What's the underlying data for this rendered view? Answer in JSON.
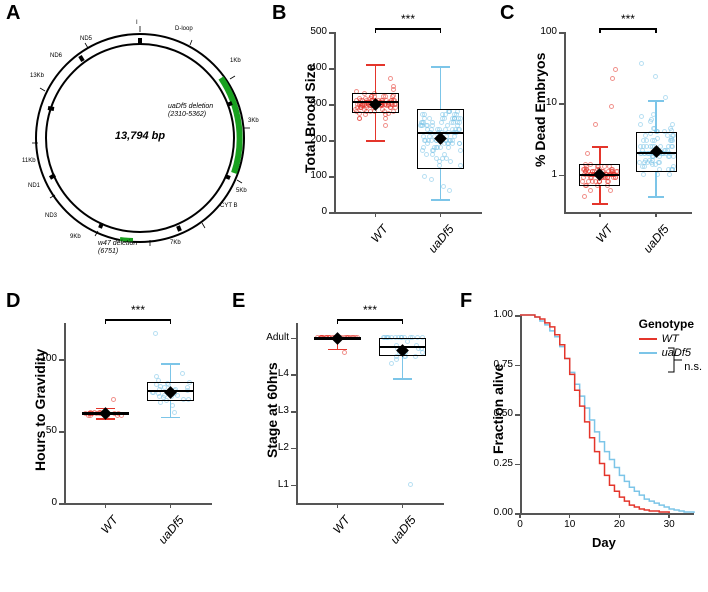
{
  "colors": {
    "wt": "#e4352b",
    "uaDf5": "#7cc5e8",
    "accent_green": "#19a11f",
    "axis": "#555555",
    "black": "#000000",
    "bg": "#ffffff"
  },
  "panelA": {
    "label": "A",
    "center": "13,794 bp",
    "anno1": "uaDf5 deletion\n(2310-5362)",
    "anno2": "w47 deletion\n(6751)",
    "outer_ticks": [
      "I",
      "II",
      "1Kb",
      "III",
      "2Kb",
      "IV",
      "3Kb",
      "D-loop",
      "4Kb",
      "5Kb",
      "6Kb",
      "7Kb",
      "8Kb",
      "9Kb",
      "10Kb",
      "11Kb",
      "12Kb",
      "13Kb",
      "ND5",
      "ND6",
      "ND4",
      "ND1",
      "ND2",
      "ND3",
      "CYT B",
      "ATP6",
      "COX I",
      "COX II",
      "COX III"
    ]
  },
  "panelB": {
    "label": "B",
    "ylabel": "Total Brood Size",
    "xlabels": [
      "WT",
      "uaDf5"
    ],
    "yticks": [
      0,
      100,
      200,
      300,
      400,
      500
    ],
    "ylim": [
      0,
      500
    ],
    "sig": "***",
    "wt": {
      "q1": 275,
      "median": 305,
      "q3": 330,
      "whisker_lo": 200,
      "whisker_hi": 410,
      "mean": 300,
      "jitter": [
        270,
        300,
        310,
        305,
        290,
        280,
        320,
        330,
        275,
        295,
        260,
        340,
        310,
        300,
        285,
        315,
        305,
        295,
        310,
        325,
        280,
        290,
        300,
        310,
        320,
        305,
        295,
        270,
        350,
        260,
        300,
        310,
        290,
        280,
        330,
        305,
        295,
        300,
        310,
        285,
        320,
        240,
        370,
        300,
        310,
        290,
        305,
        315,
        295,
        285,
        275,
        300,
        310,
        320,
        290,
        300,
        305,
        295,
        300,
        310,
        280,
        300,
        295,
        305,
        310,
        300,
        290,
        320,
        300,
        310,
        260,
        335,
        305,
        295,
        280,
        300,
        310,
        290,
        305,
        300,
        310,
        320,
        300,
        295,
        310,
        305,
        290,
        300,
        280,
        315,
        300,
        295,
        305,
        310,
        290,
        300,
        310,
        300,
        305,
        295
      ]
    },
    "ua": {
      "q1": 120,
      "median": 220,
      "q3": 285,
      "whisker_lo": 35,
      "whisker_hi": 405,
      "mean": 205,
      "jitter": [
        230,
        180,
        250,
        200,
        150,
        260,
        220,
        270,
        190,
        160,
        240,
        280,
        130,
        210,
        170,
        90,
        250,
        230,
        200,
        260,
        180,
        150,
        270,
        220,
        100,
        240,
        200,
        260,
        190,
        140,
        230,
        280,
        170,
        250,
        220,
        60,
        200,
        260,
        180,
        240,
        210,
        70,
        230,
        190,
        270,
        200,
        250,
        160,
        220,
        280,
        180,
        240,
        200,
        260,
        150,
        230,
        210,
        270,
        190,
        250,
        130,
        220,
        260,
        200,
        240,
        180,
        230,
        270,
        200,
        160,
        250,
        220,
        280,
        190,
        240,
        170,
        230,
        260,
        200,
        250,
        140,
        220,
        270,
        190,
        240,
        210,
        260,
        180,
        250,
        200,
        230,
        260,
        170,
        240,
        200,
        260,
        210,
        230,
        190,
        250
      ]
    }
  },
  "panelC": {
    "label": "C",
    "ylabel": "% Dead Embryos",
    "xlabels": [
      "WT",
      "uaDf5"
    ],
    "ytick_labels": [
      "1",
      "10",
      "100"
    ],
    "ytick_values": [
      1,
      10,
      100
    ],
    "ylim": [
      0.3,
      100
    ],
    "sig": "***",
    "wt": {
      "q1": 0.7,
      "median": 1.0,
      "q3": 1.4,
      "whisker_lo": 0.4,
      "whisker_hi": 2.5,
      "mean": 1.0,
      "jitter": [
        1.0,
        0.8,
        1.2,
        0.9,
        1.1,
        0.7,
        1.3,
        1.0,
        0.6,
        1.4,
        1.0,
        0.9,
        1.1,
        1.2,
        0.8,
        0.5,
        1.0,
        1.0,
        1.3,
        0.9,
        1.1,
        0.7,
        1.0,
        1.2,
        0.8,
        2.0,
        1.0,
        0.9,
        1.1,
        1.0,
        1.4,
        0.6,
        1.0,
        1.2,
        0.8,
        1.0,
        1.1,
        0.9,
        1.3,
        1.0,
        22,
        0.8,
        1.0,
        0.9,
        1.1,
        1.0,
        30,
        1.2,
        0.7,
        1.0,
        0.9,
        5.0,
        1.1,
        1.0,
        1.3,
        0.8,
        1.0,
        9.0,
        0.9,
        1.1,
        1.0,
        1.2,
        0.8,
        1.0,
        1.0,
        0.9,
        1.1,
        1.0,
        1.3,
        0.7,
        1.0,
        0.9,
        1.1,
        1.0,
        1.2,
        0.8,
        1.0,
        0.9,
        1.0,
        1.1,
        1.0,
        0.8,
        1.2,
        1.0,
        0.9,
        1.1,
        1.0,
        1.0,
        0.9,
        1.1
      ]
    },
    "ua": {
      "q1": 1.1,
      "median": 2.0,
      "q3": 4.0,
      "whisker_lo": 0.5,
      "whisker_hi": 11,
      "mean": 2.1,
      "jitter": [
        2.0,
        1.5,
        3.0,
        1.2,
        4.0,
        2.5,
        1.0,
        3.5,
        2.0,
        1.8,
        5.0,
        2.2,
        1.3,
        3.0,
        2.0,
        6.0,
        1.5,
        2.5,
        1.8,
        4.5,
        2.0,
        1.2,
        3.2,
        2.5,
        1.0,
        24,
        2.0,
        1.6,
        3.8,
        2.2,
        5.5,
        1.4,
        2.0,
        3.0,
        1.8,
        2.5,
        4.0,
        1.2,
        2.0,
        3.5,
        1.6,
        6.5,
        2.0,
        1.5,
        3.0,
        2.5,
        36,
        4.2,
        1.8,
        2.0,
        1.3,
        7.0,
        2.5,
        1.5,
        3.0,
        2.0,
        1.0,
        4.5,
        1.8,
        2.2,
        3.5,
        1.4,
        2.0,
        12,
        2.5,
        1.6,
        3.0,
        2.0,
        4.0,
        1.2,
        2.5,
        1.8,
        3.2,
        2.0,
        5.0,
        1.5,
        2.0,
        3.5,
        2.2,
        1.3,
        4.0,
        2.0,
        1.8,
        2.5,
        3.0,
        1.5,
        2.0,
        4.5,
        1.2,
        2.5
      ]
    }
  },
  "panelD": {
    "label": "D",
    "ylabel": "Hours to Gravidity",
    "xlabels": [
      "WT",
      "uaDf5"
    ],
    "yticks": [
      0,
      50,
      100
    ],
    "ylim": [
      0,
      125
    ],
    "sig": "***",
    "wt": {
      "q1": 61,
      "median": 62,
      "q3": 63,
      "whisker_lo": 59,
      "whisker_hi": 66,
      "mean": 62,
      "jitter": [
        62,
        61,
        63,
        62,
        61,
        62,
        62,
        61,
        63,
        62,
        72,
        62,
        61,
        62,
        63,
        62,
        62,
        61,
        62,
        62,
        62,
        63,
        61,
        62,
        62
      ]
    },
    "ua": {
      "q1": 71,
      "median": 78,
      "q3": 84,
      "whisker_lo": 60,
      "whisker_hi": 97,
      "mean": 77,
      "jitter": [
        78,
        72,
        82,
        75,
        80,
        70,
        85,
        77,
        68,
        83,
        76,
        79,
        74,
        88,
        73,
        81,
        76,
        90,
        71,
        78,
        63,
        80,
        75,
        84,
        72,
        79,
        118,
        77,
        82,
        74
      ]
    }
  },
  "panelE": {
    "label": "E",
    "ylabel": "Stage at 60hrs",
    "xlabels": [
      "WT",
      "uaDf5"
    ],
    "ytick_labels": [
      "L1",
      "L2",
      "L3",
      "L4",
      "Adult"
    ],
    "ytick_values": [
      1,
      2,
      3,
      4,
      5
    ],
    "ylim": [
      0.5,
      5.4
    ],
    "sig": "***",
    "wt": {
      "q1": 4.95,
      "median": 5.0,
      "q3": 5.0,
      "whisker_lo": 4.7,
      "whisker_hi": 5.0,
      "mean": 4.97,
      "jitter": [
        5,
        5,
        5,
        5,
        5,
        5,
        5,
        5,
        5,
        5,
        5,
        5,
        5,
        5,
        5,
        5,
        5,
        4.6,
        5,
        5,
        5,
        5,
        5,
        5,
        5,
        5,
        5,
        5,
        5,
        5
      ]
    },
    "ua": {
      "q1": 4.5,
      "median": 4.75,
      "q3": 5.0,
      "whisker_lo": 3.9,
      "whisker_hi": 5.0,
      "mean": 4.65,
      "jitter": [
        5,
        4.5,
        5,
        4.7,
        5,
        4.3,
        5,
        4.6,
        5,
        4.8,
        5,
        4.5,
        5,
        4.7,
        5,
        4.4,
        5,
        4.9,
        5,
        4.6,
        1,
        5,
        4.5,
        5,
        4.7,
        5,
        4.6,
        5,
        4.8,
        5,
        4.5
      ]
    }
  },
  "panelF": {
    "label": "F",
    "ylabel": "Fraction alive",
    "xlabel": "Day",
    "xticks": [
      0,
      10,
      20,
      30
    ],
    "yticks": [
      0.0,
      0.25,
      0.5,
      0.75,
      1.0
    ],
    "xlim": [
      0,
      35
    ],
    "ylim": [
      0,
      1.0
    ],
    "legend_title": "Genotype",
    "legend_items": [
      "WT",
      "uaDf5"
    ],
    "ns_text": "n.s.",
    "wt_curve": [
      [
        0,
        1.0
      ],
      [
        2,
        1.0
      ],
      [
        3,
        0.99
      ],
      [
        4,
        0.98
      ],
      [
        5,
        0.96
      ],
      [
        6,
        0.94
      ],
      [
        7,
        0.9
      ],
      [
        8,
        0.85
      ],
      [
        9,
        0.78
      ],
      [
        10,
        0.7
      ],
      [
        11,
        0.62
      ],
      [
        12,
        0.54
      ],
      [
        13,
        0.46
      ],
      [
        14,
        0.38
      ],
      [
        15,
        0.31
      ],
      [
        16,
        0.25
      ],
      [
        17,
        0.19
      ],
      [
        18,
        0.14
      ],
      [
        19,
        0.11
      ],
      [
        20,
        0.08
      ],
      [
        21,
        0.06
      ],
      [
        22,
        0.04
      ],
      [
        23,
        0.03
      ],
      [
        24,
        0.02
      ],
      [
        25,
        0.015
      ],
      [
        26,
        0.01
      ],
      [
        28,
        0.005
      ],
      [
        30,
        0.0
      ]
    ],
    "ua_curve": [
      [
        0,
        1.0
      ],
      [
        2,
        1.0
      ],
      [
        3,
        0.99
      ],
      [
        4,
        0.97
      ],
      [
        5,
        0.95
      ],
      [
        6,
        0.92
      ],
      [
        7,
        0.89
      ],
      [
        8,
        0.84
      ],
      [
        9,
        0.78
      ],
      [
        10,
        0.71
      ],
      [
        11,
        0.65
      ],
      [
        12,
        0.59
      ],
      [
        13,
        0.53
      ],
      [
        14,
        0.47
      ],
      [
        15,
        0.41
      ],
      [
        16,
        0.36
      ],
      [
        17,
        0.31
      ],
      [
        18,
        0.27
      ],
      [
        19,
        0.23
      ],
      [
        20,
        0.19
      ],
      [
        21,
        0.16
      ],
      [
        22,
        0.13
      ],
      [
        23,
        0.11
      ],
      [
        24,
        0.09
      ],
      [
        25,
        0.07
      ],
      [
        26,
        0.06
      ],
      [
        27,
        0.05
      ],
      [
        28,
        0.04
      ],
      [
        29,
        0.03
      ],
      [
        30,
        0.02
      ],
      [
        31,
        0.015
      ],
      [
        32,
        0.01
      ],
      [
        33,
        0.005
      ],
      [
        35,
        0.0
      ]
    ]
  }
}
